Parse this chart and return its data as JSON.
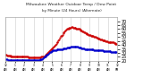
{
  "title_line1": "Milwaukee Weather Outdoor Temp / Dew Point",
  "title_line2": "by Minute",
  "title_line3": "(24 Hours) (Alternate)",
  "bg_color": "#ffffff",
  "plot_bg_color": "#ffffff",
  "grid_color": "#cccccc",
  "temp_color": "#cc0000",
  "dew_color": "#0000cc",
  "ylim": [
    20,
    75
  ],
  "yticks": [
    20,
    25,
    30,
    35,
    40,
    45,
    50,
    55,
    60,
    65,
    70
  ],
  "temp_x": [
    0,
    1,
    2,
    3,
    4,
    5,
    6,
    7,
    8,
    9,
    10,
    11,
    12,
    13,
    14,
    15,
    16,
    17,
    18,
    19,
    20,
    21,
    22,
    23,
    24,
    25,
    26,
    27,
    28,
    29,
    30,
    31,
    32,
    33,
    34,
    35,
    36,
    37,
    38,
    39,
    40,
    41,
    42,
    43,
    44,
    45,
    46,
    47,
    48,
    49,
    50,
    51,
    52,
    53,
    54,
    55,
    56,
    57,
    58,
    59,
    60,
    61,
    62,
    63,
    64,
    65,
    66,
    67,
    68,
    69,
    70,
    71,
    72,
    73,
    74,
    75,
    76,
    77,
    78,
    79,
    80,
    81,
    82,
    83,
    84,
    85,
    86,
    87,
    88,
    89,
    90,
    91,
    92,
    93,
    94,
    95,
    96,
    97,
    98,
    99,
    100,
    101,
    102,
    103,
    104,
    105,
    106,
    107,
    108,
    109,
    110,
    111,
    112,
    113,
    114,
    115,
    116,
    117,
    118,
    119,
    120,
    121,
    122,
    123,
    124,
    125,
    126,
    127,
    128,
    129,
    130,
    131,
    132,
    133,
    134,
    135,
    136,
    137,
    138,
    139,
    140,
    141,
    142,
    143
  ],
  "temp_y": [
    28,
    28,
    27,
    27,
    27,
    27,
    27,
    26,
    26,
    26,
    26,
    26,
    26,
    26,
    26,
    25,
    25,
    25,
    25,
    25,
    25,
    25,
    25,
    25,
    25,
    25,
    25,
    25,
    25,
    24,
    24,
    24,
    24,
    24,
    24,
    24,
    24,
    24,
    24,
    24,
    24,
    24,
    24,
    24,
    24,
    24,
    25,
    25,
    25,
    25,
    26,
    27,
    28,
    29,
    30,
    31,
    32,
    33,
    34,
    35,
    36,
    37,
    38,
    39,
    40,
    41,
    43,
    44,
    46,
    47,
    49,
    51,
    52,
    53,
    55,
    56,
    57,
    58,
    59,
    60,
    60,
    61,
    62,
    62,
    62,
    63,
    63,
    62,
    62,
    62,
    62,
    61,
    61,
    60,
    60,
    60,
    59,
    58,
    58,
    57,
    57,
    56,
    56,
    55,
    55,
    54,
    54,
    53,
    53,
    53,
    52,
    52,
    51,
    51,
    50,
    50,
    50,
    49,
    49,
    48,
    48,
    48,
    47,
    47,
    47,
    46,
    46,
    46,
    46,
    45,
    45,
    45,
    44,
    44,
    44,
    44,
    43,
    43,
    43,
    43,
    42,
    42,
    41,
    41
  ],
  "dew_x": [
    0,
    1,
    2,
    3,
    4,
    5,
    6,
    7,
    8,
    9,
    10,
    11,
    12,
    13,
    14,
    15,
    16,
    17,
    18,
    19,
    20,
    21,
    22,
    23,
    24,
    25,
    26,
    27,
    28,
    29,
    30,
    31,
    32,
    33,
    34,
    35,
    36,
    37,
    38,
    39,
    40,
    41,
    42,
    43,
    44,
    45,
    46,
    47,
    48,
    49,
    50,
    51,
    52,
    53,
    54,
    55,
    56,
    57,
    58,
    59,
    60,
    61,
    62,
    63,
    64,
    65,
    66,
    67,
    68,
    69,
    70,
    71,
    72,
    73,
    74,
    75,
    76,
    77,
    78,
    79,
    80,
    81,
    82,
    83,
    84,
    85,
    86,
    87,
    88,
    89,
    90,
    91,
    92,
    93,
    94,
    95,
    96,
    97,
    98,
    99,
    100,
    101,
    102,
    103,
    104,
    105,
    106,
    107,
    108,
    109,
    110,
    111,
    112,
    113,
    114,
    115,
    116,
    117,
    118,
    119,
    120,
    121,
    122,
    123,
    124,
    125,
    126,
    127,
    128,
    129,
    130,
    131,
    132,
    133,
    134,
    135,
    136,
    137,
    138,
    139,
    140,
    141,
    142,
    143
  ],
  "dew_y": [
    22,
    22,
    22,
    21,
    21,
    21,
    21,
    21,
    21,
    21,
    21,
    21,
    21,
    21,
    21,
    21,
    21,
    21,
    21,
    21,
    21,
    21,
    21,
    21,
    21,
    21,
    21,
    21,
    21,
    21,
    21,
    21,
    21,
    21,
    21,
    21,
    21,
    21,
    21,
    21,
    21,
    21,
    21,
    21,
    21,
    22,
    22,
    22,
    23,
    24,
    25,
    26,
    27,
    28,
    28,
    29,
    30,
    31,
    31,
    32,
    32,
    33,
    33,
    33,
    33,
    33,
    34,
    34,
    35,
    35,
    35,
    35,
    35,
    35,
    36,
    36,
    36,
    36,
    36,
    37,
    37,
    37,
    37,
    37,
    38,
    38,
    38,
    38,
    38,
    38,
    38,
    38,
    38,
    38,
    37,
    37,
    37,
    37,
    36,
    36,
    36,
    36,
    35,
    35,
    35,
    35,
    35,
    34,
    34,
    34,
    34,
    34,
    34,
    34,
    33,
    33,
    33,
    33,
    33,
    33,
    33,
    33,
    33,
    33,
    33,
    33,
    32,
    32,
    32,
    32,
    32,
    32,
    32,
    32,
    32,
    32,
    31,
    31,
    31,
    31,
    31,
    31,
    31,
    31
  ],
  "xtick_positions": [
    0,
    12,
    24,
    36,
    48,
    60,
    72,
    84,
    96,
    108,
    120,
    132,
    144
  ],
  "xtick_labels": [
    "12\nAM",
    "1\nAM",
    "2\nAM",
    "3\nAM",
    "4\nAM",
    "5\nAM",
    "6\nAM",
    "7\nAM",
    "8\nAM",
    "9\nAM",
    "10\nAM",
    "11\nAM",
    "12\nPM"
  ]
}
